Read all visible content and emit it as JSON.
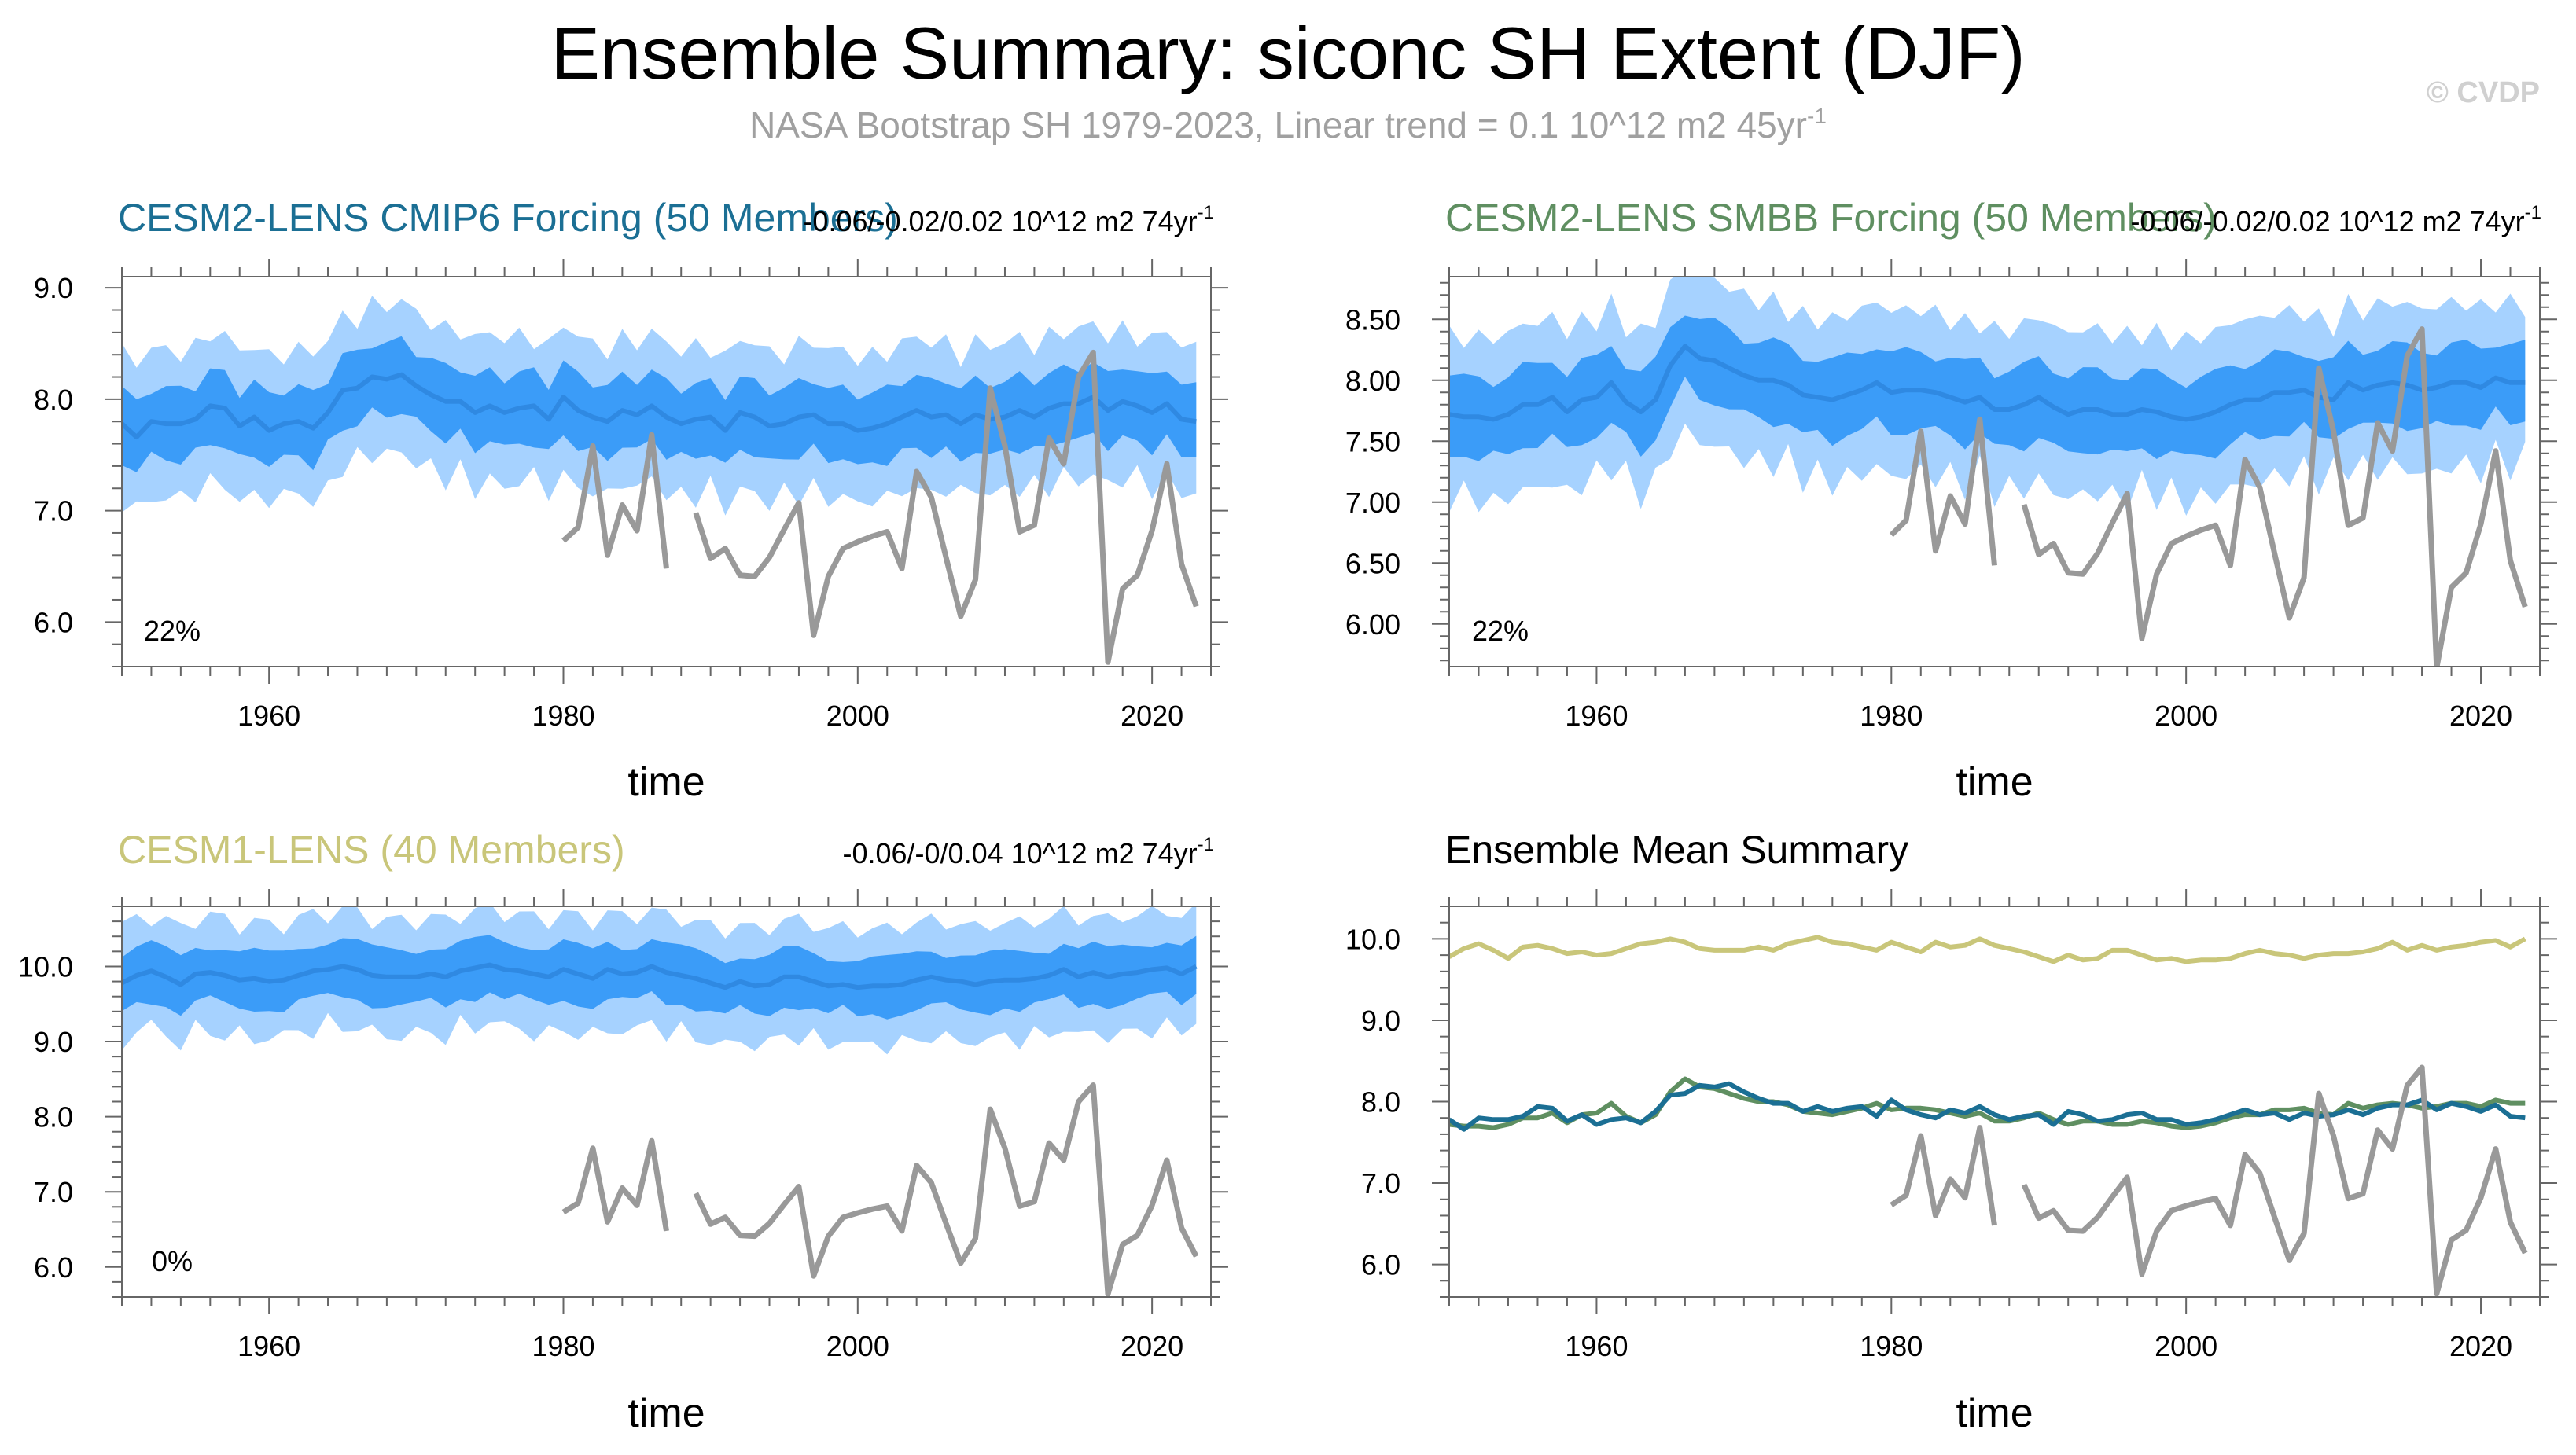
{
  "header": {
    "title": "Ensemble Summary: siconc SH Extent (DJF)",
    "subtitle": "NASA Bootstrap SH 1979-2023, Linear trend = 0.1 10^12 m2 45yr",
    "subtitle_sup": "-1",
    "watermark": "© CVDP"
  },
  "colors": {
    "band_outer": "#a6d2ff",
    "band_inner": "#3b9cf8",
    "ens_mean_line": "#2f89e2",
    "obs_line": "#999999",
    "cesm2_cmip6": "#1b6f94",
    "cesm2_smbb": "#5f8f61",
    "cesm1": "#c9c67a",
    "axis": "#666666"
  },
  "chart_data": [
    {
      "type": "line",
      "id": "cesm2-cmip6",
      "title": "CESM2-LENS CMIP6 Forcing (50 Members)",
      "trend_text": "-0.06/-0.02/0.02 10^12 m2 74yr",
      "trend_sup": "-1",
      "percent_label": "22%",
      "xlabel": "time",
      "xlim": [
        1950,
        2024
      ],
      "ylim": [
        5.6,
        9.1
      ],
      "xticks": [
        1960,
        1980,
        2000,
        2020
      ],
      "yticks": [
        6.0,
        7.0,
        8.0,
        9.0
      ],
      "ytick_labels": [
        "6.0",
        "7.0",
        "8.0",
        "9.0"
      ],
      "ens_mean": {
        "x0": 1950,
        "values": [
          7.78,
          7.66,
          7.8,
          7.78,
          7.78,
          7.82,
          7.94,
          7.92,
          7.76,
          7.84,
          7.72,
          7.78,
          7.8,
          7.74,
          7.88,
          8.08,
          8.1,
          8.2,
          8.18,
          8.22,
          8.12,
          8.04,
          7.98,
          7.98,
          7.88,
          7.94,
          7.88,
          7.92,
          7.94,
          7.82,
          8.02,
          7.9,
          7.84,
          7.8,
          7.9,
          7.86,
          7.94,
          7.84,
          7.78,
          7.82,
          7.84,
          7.72,
          7.88,
          7.84,
          7.76,
          7.78,
          7.84,
          7.86,
          7.78,
          7.78,
          7.72,
          7.74,
          7.78,
          7.84,
          7.9,
          7.84,
          7.86,
          7.78,
          7.86,
          7.82,
          7.84,
          7.9,
          7.84,
          7.92,
          7.96,
          7.96,
          8.02,
          7.9,
          7.98,
          7.94,
          7.88,
          7.96,
          7.82,
          7.8
        ]
      },
      "band_inner_spread": 0.3,
      "band_outer_spread": 0.62,
      "observed": {
        "x0": 1980,
        "values": [
          6.73,
          6.85,
          7.58,
          6.6,
          7.05,
          6.82,
          7.68,
          6.48,
          null,
          6.98,
          6.57,
          6.66,
          6.42,
          6.41,
          6.58,
          6.83,
          7.07,
          5.88,
          6.41,
          6.66,
          6.72,
          6.77,
          6.81,
          6.48,
          7.35,
          7.12,
          6.58,
          6.05,
          6.38,
          8.1,
          7.58,
          6.81,
          6.87,
          7.65,
          7.42,
          8.2,
          8.42,
          5.64,
          6.3,
          6.42,
          6.82,
          7.42,
          6.52,
          6.14
        ]
      }
    },
    {
      "type": "line",
      "id": "cesm2-smbb",
      "title": "CESM2-LENS SMBB Forcing (50 Members)",
      "trend_text": "-0.06/-0.02/0.02 10^12 m2 74yr",
      "trend_sup": "-1",
      "percent_label": "22%",
      "xlabel": "time",
      "xlim": [
        1950,
        2024
      ],
      "ylim": [
        5.65,
        8.85
      ],
      "xticks": [
        1960,
        1980,
        2000,
        2020
      ],
      "yticks": [
        6.0,
        6.5,
        7.0,
        7.5,
        8.0,
        8.5
      ],
      "ytick_labels": [
        "6.00",
        "6.50",
        "7.00",
        "7.50",
        "8.00",
        "8.50"
      ],
      "ens_mean": {
        "x0": 1950,
        "values": [
          7.72,
          7.7,
          7.7,
          7.68,
          7.72,
          7.8,
          7.8,
          7.86,
          7.74,
          7.84,
          7.86,
          7.98,
          7.82,
          7.74,
          7.84,
          8.12,
          8.28,
          8.18,
          8.16,
          8.1,
          8.04,
          8.0,
          8.0,
          7.96,
          7.88,
          7.86,
          7.84,
          7.88,
          7.92,
          7.98,
          7.9,
          7.92,
          7.92,
          7.9,
          7.86,
          7.82,
          7.86,
          7.76,
          7.76,
          7.8,
          7.86,
          7.78,
          7.72,
          7.76,
          7.76,
          7.72,
          7.72,
          7.76,
          7.74,
          7.7,
          7.68,
          7.7,
          7.74,
          7.8,
          7.84,
          7.84,
          7.9,
          7.9,
          7.92,
          7.86,
          7.84,
          7.98,
          7.92,
          7.96,
          7.98,
          7.96,
          7.92,
          7.94,
          7.98,
          7.98,
          7.94,
          8.02,
          7.98,
          7.98
        ]
      },
      "band_inner_spread": 0.3,
      "band_outer_spread": 0.62,
      "observed": {
        "x0": 1980,
        "values": [
          6.73,
          6.85,
          7.58,
          6.6,
          7.05,
          6.82,
          7.68,
          6.48,
          null,
          6.98,
          6.57,
          6.66,
          6.42,
          6.41,
          6.58,
          6.83,
          7.07,
          5.88,
          6.41,
          6.66,
          6.72,
          6.77,
          6.81,
          6.48,
          7.35,
          7.12,
          6.58,
          6.05,
          6.38,
          8.1,
          7.58,
          6.81,
          6.87,
          7.65,
          7.42,
          8.2,
          8.42,
          5.64,
          6.3,
          6.42,
          6.82,
          7.42,
          6.52,
          6.14
        ]
      }
    },
    {
      "type": "line",
      "id": "cesm1",
      "title": "CESM1-LENS (40 Members)",
      "trend_text": "-0.06/-0/0.04 10^12 m2 74yr",
      "trend_sup": "-1",
      "percent_label": "0%",
      "xlabel": "time",
      "xlim": [
        1950,
        2024
      ],
      "ylim": [
        5.6,
        10.8
      ],
      "xticks": [
        1960,
        1980,
        2000,
        2020
      ],
      "yticks": [
        6.0,
        7.0,
        8.0,
        9.0,
        10.0
      ],
      "ytick_labels": [
        "6.0",
        "7.0",
        "8.0",
        "9.0",
        "10.0"
      ],
      "ens_mean": {
        "x0": 1950,
        "values": [
          9.78,
          9.88,
          9.94,
          9.86,
          9.76,
          9.9,
          9.92,
          9.88,
          9.82,
          9.84,
          9.8,
          9.82,
          9.88,
          9.94,
          9.96,
          10.0,
          9.96,
          9.88,
          9.86,
          9.86,
          9.86,
          9.9,
          9.86,
          9.94,
          9.98,
          10.02,
          9.96,
          9.94,
          9.9,
          9.86,
          9.96,
          9.9,
          9.84,
          9.96,
          9.9,
          9.92,
          10.0,
          9.92,
          9.88,
          9.84,
          9.78,
          9.72,
          9.8,
          9.74,
          9.76,
          9.86,
          9.86,
          9.8,
          9.74,
          9.76,
          9.72,
          9.74,
          9.74,
          9.76,
          9.82,
          9.86,
          9.82,
          9.8,
          9.76,
          9.8,
          9.82,
          9.82,
          9.84,
          9.88,
          9.96,
          9.86,
          9.92,
          9.86,
          9.9,
          9.92,
          9.96,
          9.98,
          9.9,
          10.0
        ]
      },
      "band_inner_spread": 0.35,
      "band_outer_spread": 0.72,
      "observed": {
        "x0": 1980,
        "values": [
          6.73,
          6.85,
          7.58,
          6.6,
          7.05,
          6.82,
          7.68,
          6.48,
          null,
          6.98,
          6.57,
          6.66,
          6.42,
          6.41,
          6.58,
          6.83,
          7.07,
          5.88,
          6.41,
          6.66,
          6.72,
          6.77,
          6.81,
          6.48,
          7.35,
          7.12,
          6.58,
          6.05,
          6.38,
          8.1,
          7.58,
          6.81,
          6.87,
          7.65,
          7.42,
          8.2,
          8.42,
          5.64,
          6.3,
          6.42,
          6.82,
          7.42,
          6.52,
          6.14
        ]
      }
    },
    {
      "type": "line",
      "id": "ensemble-mean-summary",
      "title": "Ensemble Mean Summary",
      "xlabel": "time",
      "xlim": [
        1950,
        2024
      ],
      "ylim": [
        5.6,
        10.4
      ],
      "xticks": [
        1960,
        1980,
        2000,
        2020
      ],
      "yticks": [
        6.0,
        7.0,
        8.0,
        9.0,
        10.0
      ],
      "ytick_labels": [
        "6.0",
        "7.0",
        "8.0",
        "9.0",
        "10.0"
      ],
      "series": [
        {
          "name": "CESM1-LENS",
          "color_key": "cesm1",
          "x0": 1950,
          "values": [
            9.78,
            9.88,
            9.94,
            9.86,
            9.76,
            9.9,
            9.92,
            9.88,
            9.82,
            9.84,
            9.8,
            9.82,
            9.88,
            9.94,
            9.96,
            10.0,
            9.96,
            9.88,
            9.86,
            9.86,
            9.86,
            9.9,
            9.86,
            9.94,
            9.98,
            10.02,
            9.96,
            9.94,
            9.9,
            9.86,
            9.96,
            9.9,
            9.84,
            9.96,
            9.9,
            9.92,
            10.0,
            9.92,
            9.88,
            9.84,
            9.78,
            9.72,
            9.8,
            9.74,
            9.76,
            9.86,
            9.86,
            9.8,
            9.74,
            9.76,
            9.72,
            9.74,
            9.74,
            9.76,
            9.82,
            9.86,
            9.82,
            9.8,
            9.76,
            9.8,
            9.82,
            9.82,
            9.84,
            9.88,
            9.96,
            9.86,
            9.92,
            9.86,
            9.9,
            9.92,
            9.96,
            9.98,
            9.9,
            10.0
          ]
        },
        {
          "name": "CESM2-LENS SMBB Forcing",
          "color_key": "cesm2_smbb",
          "x0": 1950,
          "values": [
            7.72,
            7.7,
            7.7,
            7.68,
            7.72,
            7.8,
            7.8,
            7.86,
            7.74,
            7.84,
            7.86,
            7.98,
            7.82,
            7.74,
            7.84,
            8.12,
            8.28,
            8.18,
            8.16,
            8.1,
            8.04,
            8.0,
            8.0,
            7.96,
            7.88,
            7.86,
            7.84,
            7.88,
            7.92,
            7.98,
            7.9,
            7.92,
            7.92,
            7.9,
            7.86,
            7.82,
            7.86,
            7.76,
            7.76,
            7.8,
            7.86,
            7.78,
            7.72,
            7.76,
            7.76,
            7.72,
            7.72,
            7.76,
            7.74,
            7.7,
            7.68,
            7.7,
            7.74,
            7.8,
            7.84,
            7.84,
            7.9,
            7.9,
            7.92,
            7.86,
            7.84,
            7.98,
            7.92,
            7.96,
            7.98,
            7.96,
            7.92,
            7.94,
            7.98,
            7.98,
            7.94,
            8.02,
            7.98,
            7.98
          ]
        },
        {
          "name": "CESM2-LENS CMIP6 Forcing",
          "color_key": "cesm2_cmip6",
          "x0": 1950,
          "values": [
            7.78,
            7.66,
            7.8,
            7.78,
            7.78,
            7.82,
            7.94,
            7.92,
            7.76,
            7.84,
            7.72,
            7.78,
            7.8,
            7.74,
            7.88,
            8.08,
            8.1,
            8.2,
            8.18,
            8.22,
            8.12,
            8.04,
            7.98,
            7.98,
            7.88,
            7.94,
            7.88,
            7.92,
            7.94,
            7.82,
            8.02,
            7.9,
            7.84,
            7.8,
            7.9,
            7.86,
            7.94,
            7.84,
            7.78,
            7.82,
            7.84,
            7.72,
            7.88,
            7.84,
            7.76,
            7.78,
            7.84,
            7.86,
            7.78,
            7.78,
            7.72,
            7.74,
            7.78,
            7.84,
            7.9,
            7.84,
            7.86,
            7.78,
            7.86,
            7.82,
            7.84,
            7.9,
            7.84,
            7.92,
            7.96,
            7.96,
            8.02,
            7.9,
            7.98,
            7.94,
            7.88,
            7.96,
            7.82,
            7.8
          ]
        },
        {
          "name": "NASA Bootstrap SH",
          "color_key": "obs_line",
          "x0": 1980,
          "values": [
            6.73,
            6.85,
            7.58,
            6.6,
            7.05,
            6.82,
            7.68,
            6.48,
            null,
            6.98,
            6.57,
            6.66,
            6.42,
            6.41,
            6.58,
            6.83,
            7.07,
            5.88,
            6.41,
            6.66,
            6.72,
            6.77,
            6.81,
            6.48,
            7.35,
            7.12,
            6.58,
            6.05,
            6.38,
            8.1,
            7.58,
            6.81,
            6.87,
            7.65,
            7.42,
            8.2,
            8.42,
            5.64,
            6.3,
            6.42,
            6.82,
            7.42,
            6.52,
            6.14
          ]
        }
      ]
    }
  ]
}
